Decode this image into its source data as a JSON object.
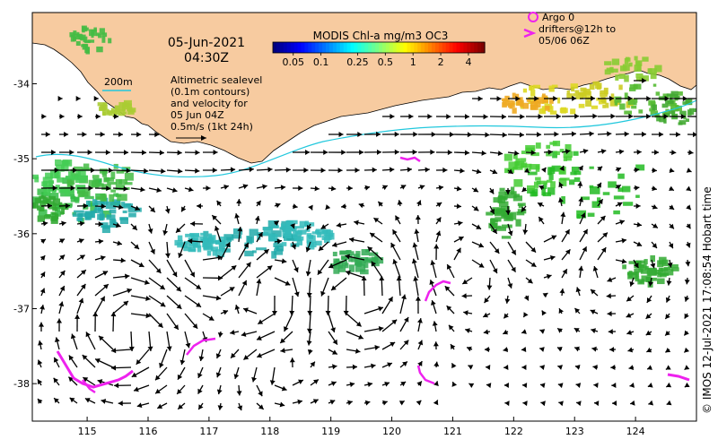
{
  "map": {
    "date": "05-Jun-2021",
    "time": "04:30Z",
    "product_title": "MODIS Chl-a mg/m3 OC3",
    "colorbar_ticks": [
      "0.05",
      "0.1",
      "0.25",
      "0.5",
      "1",
      "2",
      "4"
    ],
    "contour_label": "200m",
    "description_lines": [
      "Altimetric sealevel",
      "(0.1m contours)",
      "and velocity for",
      "05 Jun 04Z",
      "0.5m/s (1kt 24h)"
    ],
    "legend_lines": [
      "Argo 0",
      "drifters@12h to",
      "05/06 06Z"
    ],
    "credit": "© IMOS 12-Jul-2021 17:08:54 Hobart time",
    "lon_ticks": [
      "115",
      "116",
      "117",
      "118",
      "119",
      "120",
      "121",
      "122",
      "123",
      "124"
    ],
    "lat_ticks": [
      "-34",
      "-35",
      "-36",
      "-37",
      "-38"
    ],
    "lon_range": [
      114.1,
      125.0
    ],
    "lat_range": [
      -38.5,
      -33.05
    ],
    "colors": {
      "land": "#f7cba0",
      "ocean": "#ffffff",
      "drifter": "#ee22ee",
      "contour": "#22c8dd",
      "arrow": "#000000",
      "colorbar": [
        "#00007f",
        "#0000ff",
        "#007fff",
        "#00ffff",
        "#7fff7f",
        "#ffff00",
        "#ff7f00",
        "#ff0000",
        "#7f0000"
      ]
    }
  }
}
